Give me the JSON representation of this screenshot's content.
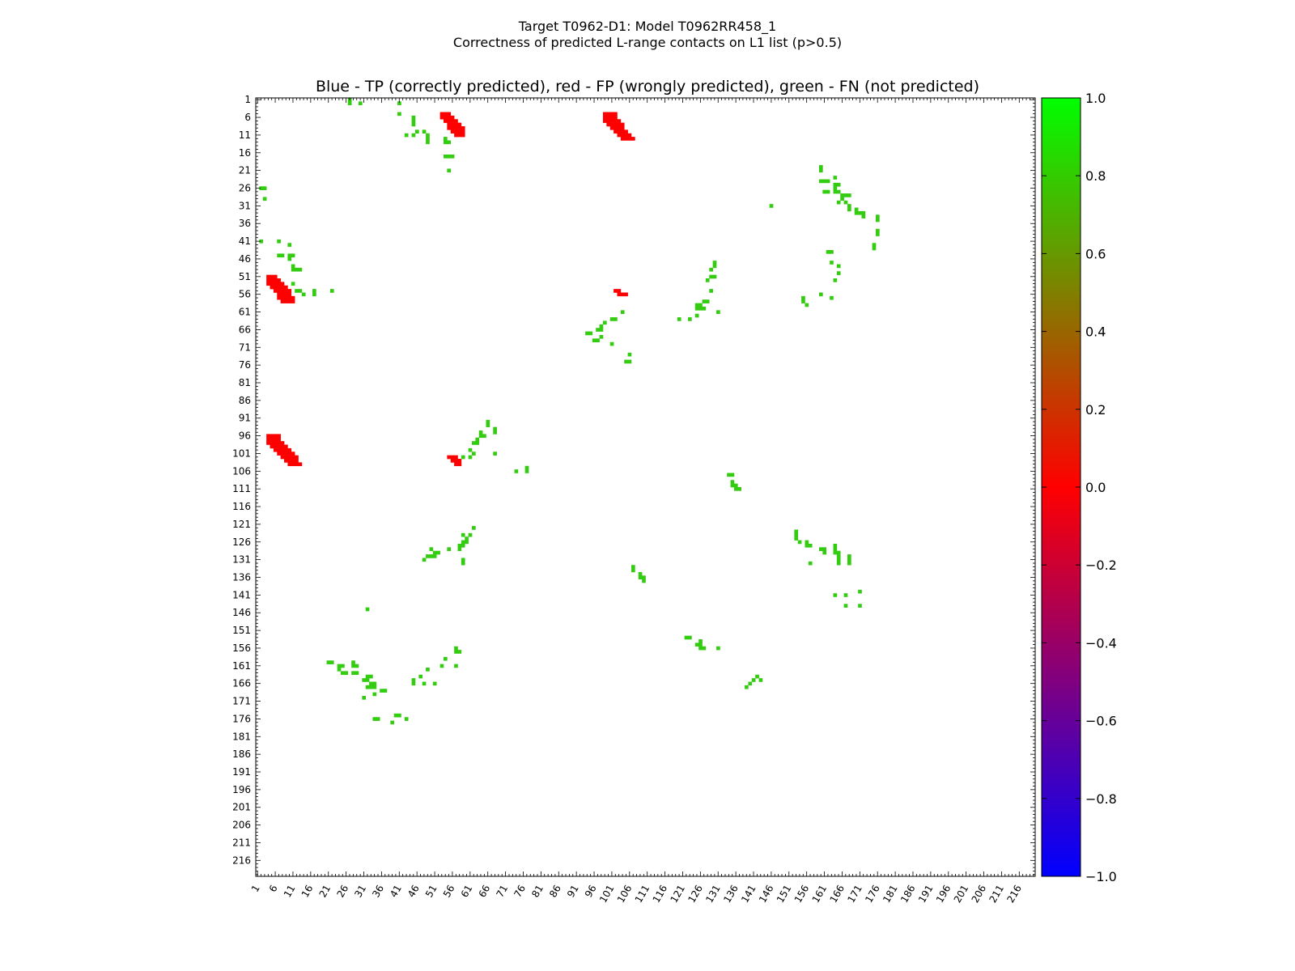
{
  "header": {
    "title_line1": "Target T0962-D1: Model T0962RR458_1",
    "title_line2": "Correctness of predicted L-range contacts on L1 list (p>0.5)"
  },
  "chart_data": {
    "type": "heatmap",
    "title": "Blue - TP (correctly predicted), red - FP (wrongly predicted), green - FN (not predicted)",
    "xlabel": "",
    "ylabel": "",
    "xlim": [
      1,
      220
    ],
    "ylim": [
      1,
      220
    ],
    "y_axis_inverted": true,
    "grid": false,
    "x_ticks": [
      "1",
      "6",
      "11",
      "16",
      "21",
      "26",
      "31",
      "36",
      "41",
      "46",
      "51",
      "56",
      "61",
      "66",
      "71",
      "76",
      "81",
      "86",
      "91",
      "96",
      "101",
      "106",
      "111",
      "116",
      "121",
      "126",
      "131",
      "136",
      "141",
      "146",
      "151",
      "156",
      "161",
      "166",
      "171",
      "176",
      "181",
      "186",
      "191",
      "196",
      "201",
      "206",
      "211",
      "216"
    ],
    "y_ticks": [
      "1",
      "6",
      "11",
      "16",
      "21",
      "26",
      "31",
      "36",
      "41",
      "46",
      "51",
      "56",
      "61",
      "66",
      "71",
      "76",
      "81",
      "86",
      "91",
      "96",
      "101",
      "106",
      "111",
      "116",
      "121",
      "126",
      "131",
      "136",
      "141",
      "146",
      "151",
      "156",
      "161",
      "166",
      "171",
      "176",
      "181",
      "186",
      "191",
      "196",
      "201",
      "206",
      "211",
      "216"
    ],
    "colorbar": {
      "min": -1.0,
      "max": 1.0,
      "ticks": [
        "1.0",
        "0.8",
        "0.6",
        "0.4",
        "0.2",
        "0.0",
        "−0.2",
        "−0.4",
        "−0.6",
        "−0.8",
        "−1.0"
      ],
      "colors": [
        "#0000ff",
        "#ff0000",
        "#00ff00"
      ],
      "position": "right"
    },
    "values_legend": {
      "TP": -1,
      "FP": 0,
      "FN": 0.8
    },
    "fp_clusters": [
      {
        "rows": [
          [
            5,
            53,
            55
          ],
          [
            6,
            53,
            56
          ],
          [
            7,
            54,
            57
          ],
          [
            8,
            55,
            58
          ],
          [
            9,
            55,
            59
          ],
          [
            10,
            56,
            59
          ],
          [
            11,
            57,
            59
          ]
        ]
      },
      {
        "rows": [
          [
            5,
            99,
            102
          ],
          [
            6,
            99,
            102
          ],
          [
            7,
            99,
            103
          ],
          [
            8,
            100,
            104
          ],
          [
            9,
            101,
            104
          ],
          [
            10,
            102,
            105
          ],
          [
            11,
            103,
            106
          ],
          [
            12,
            104,
            107
          ]
        ]
      },
      {
        "rows": [
          [
            51,
            4,
            6
          ],
          [
            52,
            4,
            7
          ],
          [
            53,
            4,
            8
          ],
          [
            54,
            5,
            9
          ],
          [
            55,
            6,
            10
          ],
          [
            56,
            7,
            10
          ],
          [
            57,
            7,
            11
          ],
          [
            58,
            8,
            11
          ]
        ]
      },
      {
        "rows": [
          [
            96,
            4,
            7
          ],
          [
            97,
            4,
            7
          ],
          [
            98,
            4,
            8
          ],
          [
            99,
            5,
            9
          ],
          [
            100,
            6,
            10
          ],
          [
            101,
            7,
            11
          ],
          [
            102,
            8,
            12
          ],
          [
            103,
            9,
            12
          ],
          [
            104,
            10,
            13
          ]
        ]
      },
      {
        "rows": [
          [
            102,
            55,
            57
          ],
          [
            103,
            56,
            58
          ],
          [
            104,
            57,
            58
          ]
        ]
      },
      {
        "rows": [
          [
            55,
            102,
            103
          ],
          [
            56,
            103,
            105
          ]
        ]
      }
    ],
    "fn_points": [
      [
        1,
        27
      ],
      [
        2,
        27
      ],
      [
        2,
        30
      ],
      [
        2,
        41
      ],
      [
        5,
        41
      ],
      [
        6,
        45
      ],
      [
        7,
        45
      ],
      [
        8,
        45
      ],
      [
        10,
        46
      ],
      [
        11,
        43
      ],
      [
        11,
        45
      ],
      [
        10,
        48
      ],
      [
        11,
        49
      ],
      [
        12,
        49
      ],
      [
        13,
        49
      ],
      [
        12,
        54
      ],
      [
        13,
        54
      ],
      [
        13,
        55
      ],
      [
        17,
        54
      ],
      [
        17,
        55
      ],
      [
        17,
        56
      ],
      [
        21,
        55
      ],
      [
        20,
        160
      ],
      [
        21,
        160
      ],
      [
        23,
        164
      ],
      [
        24,
        160
      ],
      [
        24,
        161
      ],
      [
        24,
        162
      ],
      [
        25,
        164
      ],
      [
        25,
        165
      ],
      [
        26,
        164
      ],
      [
        27,
        161
      ],
      [
        27,
        162
      ],
      [
        27,
        164
      ],
      [
        27,
        165
      ],
      [
        28,
        166
      ],
      [
        28,
        167
      ],
      [
        28,
        168
      ],
      [
        29,
        166
      ],
      [
        30,
        165
      ],
      [
        30,
        167
      ],
      [
        31,
        168
      ],
      [
        32,
        168
      ],
      [
        32,
        170
      ],
      [
        33,
        170
      ],
      [
        33,
        171
      ],
      [
        33,
        172
      ],
      [
        34,
        172
      ],
      [
        34,
        176
      ],
      [
        35,
        176
      ],
      [
        31,
        146
      ],
      [
        26,
        2
      ],
      [
        26,
        3
      ],
      [
        29,
        3
      ],
      [
        41,
        2
      ],
      [
        41,
        7
      ],
      [
        42,
        10
      ],
      [
        45,
        7
      ],
      [
        45,
        8
      ],
      [
        45,
        10
      ],
      [
        45,
        11
      ],
      [
        46,
        10
      ],
      [
        48,
        11
      ],
      [
        49,
        11
      ],
      [
        49,
        12
      ],
      [
        49,
        13
      ],
      [
        53,
        11
      ],
      [
        55,
        12
      ],
      [
        55,
        13
      ],
      [
        56,
        14
      ],
      [
        55,
        17
      ],
      [
        56,
        17
      ],
      [
        55,
        22
      ],
      [
        38,
        176
      ],
      [
        39,
        176
      ],
      [
        42,
        175
      ],
      [
        43,
        175
      ],
      [
        44,
        162
      ],
      [
        44,
        163
      ],
      [
        47,
        163
      ],
      [
        48,
        165
      ],
      [
        50,
        165
      ],
      [
        52,
        164
      ],
      [
        56,
        160
      ],
      [
        57,
        155
      ],
      [
        58,
        155
      ],
      [
        59,
        156
      ],
      [
        57,
        163
      ],
      [
        47,
        130
      ],
      [
        48,
        130
      ],
      [
        49,
        129
      ],
      [
        51,
        129
      ],
      [
        51,
        130
      ],
      [
        52,
        128
      ],
      [
        55,
        129
      ],
      [
        58,
        127
      ],
      [
        58,
        128
      ],
      [
        59,
        126
      ],
      [
        59,
        125
      ],
      [
        60,
        125
      ],
      [
        60,
        126
      ],
      [
        60,
        127
      ],
      [
        61,
        131
      ],
      [
        62,
        125
      ],
      [
        63,
        120
      ],
      [
        63,
        123
      ],
      [
        61,
        104
      ],
      [
        63,
        101
      ],
      [
        63,
        102
      ],
      [
        64,
        99
      ],
      [
        65,
        98
      ],
      [
        66,
        97
      ],
      [
        66,
        98
      ],
      [
        67,
        94
      ],
      [
        67,
        95
      ],
      [
        68,
        98
      ],
      [
        69,
        97
      ],
      [
        69,
        96
      ],
      [
        70,
        101
      ],
      [
        73,
        106
      ],
      [
        75,
        105
      ],
      [
        75,
        106
      ],
      [
        92,
        66
      ],
      [
        93,
        66
      ],
      [
        94,
        68
      ],
      [
        95,
        68
      ],
      [
        95,
        64
      ],
      [
        96,
        64
      ],
      [
        96,
        65
      ],
      [
        97,
        63
      ],
      [
        98,
        63
      ],
      [
        98,
        62
      ],
      [
        100,
        61
      ],
      [
        101,
        68
      ],
      [
        102,
        59
      ],
      [
        102,
        61
      ],
      [
        101,
        62
      ],
      [
        105,
        77
      ],
      [
        106,
        74
      ],
      [
        106,
        77
      ],
      [
        107,
        134
      ],
      [
        107,
        135
      ],
      [
        109,
        135
      ],
      [
        110,
        135
      ],
      [
        110,
        136
      ],
      [
        111,
        136
      ],
      [
        111,
        137
      ],
      [
        122,
        62
      ],
      [
        124,
        59
      ],
      [
        124,
        61
      ],
      [
        125,
        60
      ],
      [
        126,
        59
      ],
      [
        126,
        60
      ],
      [
        127,
        58
      ],
      [
        127,
        59
      ],
      [
        128,
        58
      ],
      [
        128,
        55
      ],
      [
        129,
        52
      ],
      [
        129,
        51
      ],
      [
        130,
        51
      ],
      [
        130,
        50
      ],
      [
        130,
        49
      ],
      [
        131,
        48
      ],
      [
        131,
        59
      ],
      [
        132,
        59
      ],
      [
        128,
        50
      ],
      [
        123,
        153
      ],
      [
        124,
        153
      ],
      [
        125,
        153
      ],
      [
        126,
        154
      ],
      [
        126,
        156
      ],
      [
        127,
        156
      ],
      [
        127,
        157
      ],
      [
        128,
        160
      ],
      [
        128,
        161
      ],
      [
        129,
        161
      ],
      [
        127,
        164
      ],
      [
        128,
        164
      ],
      [
        129,
        164
      ],
      [
        129,
        165
      ],
      [
        130,
        165
      ],
      [
        130,
        168
      ],
      [
        131,
        168
      ],
      [
        131,
        165
      ],
      [
        132,
        157
      ],
      [
        132,
        165
      ],
      [
        132,
        168
      ],
      [
        133,
        107
      ],
      [
        134,
        107
      ],
      [
        135,
        109
      ],
      [
        136,
        109
      ],
      [
        136,
        110
      ],
      [
        137,
        110
      ],
      [
        141,
        164
      ],
      [
        141,
        167
      ],
      [
        140,
        171
      ],
      [
        144,
        167
      ],
      [
        144,
        171
      ],
      [
        145,
        32
      ],
      [
        153,
        122
      ],
      [
        153,
        123
      ],
      [
        154,
        126
      ],
      [
        155,
        125
      ],
      [
        155,
        126
      ],
      [
        156,
        126
      ],
      [
        156,
        57
      ],
      [
        157,
        57
      ],
      [
        157,
        58
      ],
      [
        156,
        127
      ],
      [
        156,
        131
      ],
      [
        160,
        21
      ],
      [
        160,
        22
      ],
      [
        161,
        24
      ],
      [
        161,
        25
      ],
      [
        162,
        24
      ],
      [
        160,
        28
      ],
      [
        161,
        28
      ],
      [
        161,
        29
      ],
      [
        163,
        25
      ],
      [
        163,
        26
      ],
      [
        163,
        28
      ],
      [
        163,
        29
      ],
      [
        164,
        32
      ],
      [
        164,
        33
      ],
      [
        165,
        31
      ],
      [
        165,
        32
      ],
      [
        166,
        33
      ],
      [
        166,
        34
      ],
      [
        167,
        33
      ],
      [
        167,
        34
      ],
      [
        168,
        36
      ],
      [
        168,
        37
      ],
      [
        169,
        34
      ],
      [
        176,
        34
      ],
      [
        176,
        35
      ],
      [
        159,
        54
      ],
      [
        161,
        53
      ],
      [
        161,
        57
      ],
      [
        162,
        49
      ],
      [
        164,
        47
      ],
      [
        165,
        45
      ],
      [
        166,
        45
      ],
      [
        166,
        48
      ],
      [
        166,
        51
      ],
      [
        167,
        32
      ],
      [
        170,
        31
      ],
      [
        164,
        142
      ],
      [
        165,
        141
      ],
      [
        166,
        140
      ],
      [
        167,
        139
      ],
      [
        165,
        143
      ],
      [
        175,
        40
      ],
      [
        175,
        41
      ],
      [
        176,
        43
      ],
      [
        177,
        39
      ]
    ]
  }
}
